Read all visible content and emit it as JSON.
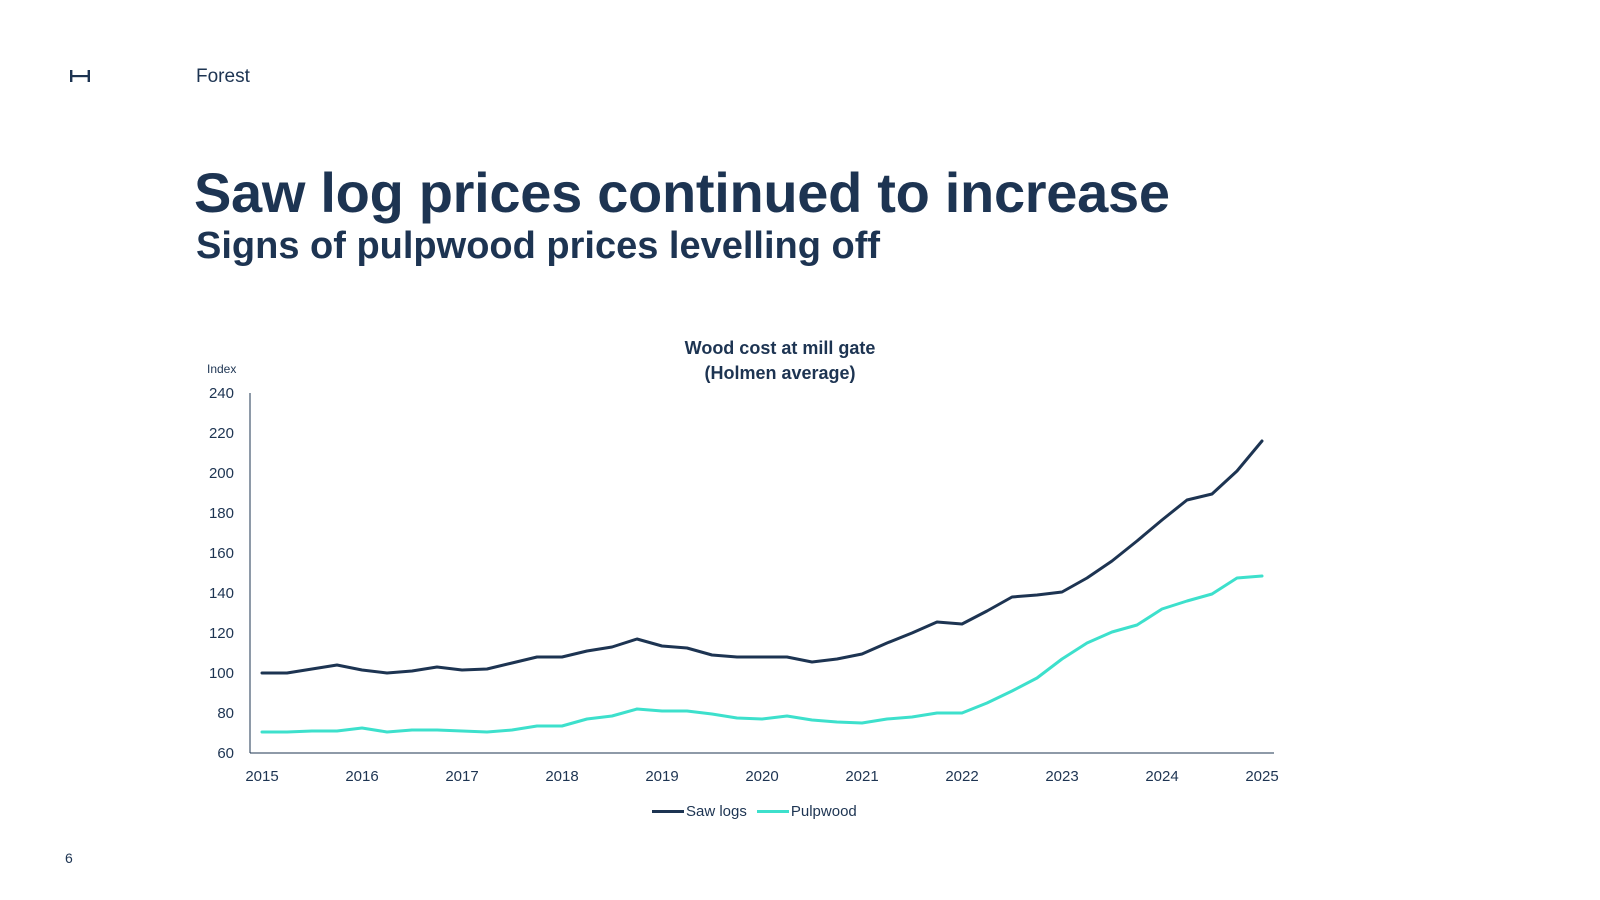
{
  "header": {
    "section": "Forest",
    "logo_icon": "holmen-h-logo-icon"
  },
  "page": {
    "title": "Saw log prices continued to increase",
    "subtitle": "Signs of pulpwood prices levelling off",
    "page_number": "6"
  },
  "colors": {
    "navy": "#1d3452",
    "teal": "#3de0cc"
  },
  "chart_data": {
    "type": "line",
    "title_lines": [
      "Wood cost at mill gate",
      "(Holmen average)"
    ],
    "ylabel": "Index",
    "xlabel": "",
    "ylim": [
      60,
      240
    ],
    "yticks": [
      60,
      80,
      100,
      120,
      140,
      160,
      180,
      200,
      220,
      240
    ],
    "xlim": [
      2015,
      2025
    ],
    "xticks": [
      2015,
      2016,
      2017,
      2018,
      2019,
      2020,
      2021,
      2022,
      2023,
      2024,
      2025
    ],
    "grid": false,
    "legend_position": "bottom-center",
    "x": [
      2015.0,
      2015.25,
      2015.5,
      2015.75,
      2016.0,
      2016.25,
      2016.5,
      2016.75,
      2017.0,
      2017.25,
      2017.5,
      2017.75,
      2018.0,
      2018.25,
      2018.5,
      2018.75,
      2019.0,
      2019.25,
      2019.5,
      2019.75,
      2020.0,
      2020.25,
      2020.5,
      2020.75,
      2021.0,
      2021.25,
      2021.5,
      2021.75,
      2022.0,
      2022.25,
      2022.5,
      2022.75,
      2023.0,
      2023.25,
      2023.5,
      2023.75,
      2024.0,
      2024.25,
      2024.5,
      2024.75,
      2025.0
    ],
    "series": [
      {
        "name": "Saw logs",
        "color": "#1d3452",
        "values": [
          100,
          100,
          102,
          104,
          101.5,
          100,
          101,
          103,
          101.5,
          102,
          105,
          108,
          108,
          111,
          113,
          117,
          113.5,
          112.5,
          109,
          108,
          108,
          108,
          105.5,
          107,
          109.5,
          115,
          120,
          125.5,
          124.5,
          131,
          138,
          139,
          140.5,
          147.5,
          156,
          166,
          176.5,
          186.5,
          189.5,
          201,
          216
        ]
      },
      {
        "name": "Pulpwood",
        "color": "#3de0cc",
        "values": [
          70.5,
          70.5,
          71,
          71,
          72.5,
          70.5,
          71.5,
          71.5,
          71,
          70.5,
          71.5,
          73.5,
          73.5,
          77,
          78.5,
          82,
          81,
          81,
          79.5,
          77.5,
          77,
          78.5,
          76.5,
          75.5,
          75,
          77,
          78,
          80,
          80,
          85,
          91,
          97.5,
          107,
          115,
          120.5,
          124,
          132,
          136,
          139.5,
          147.5,
          148.5
        ]
      }
    ]
  }
}
